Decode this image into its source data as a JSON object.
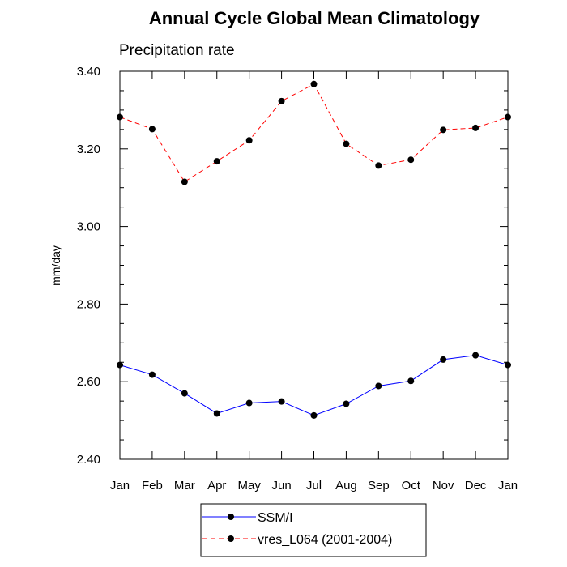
{
  "chart_data": {
    "type": "line",
    "title": "Annual Cycle Global Mean Climatology",
    "subtitle": "Precipitation rate",
    "xlabel": "",
    "ylabel": "mm/day",
    "categories": [
      "Jan",
      "Feb",
      "Mar",
      "Apr",
      "May",
      "Jun",
      "Jul",
      "Aug",
      "Sep",
      "Oct",
      "Nov",
      "Dec",
      "Jan"
    ],
    "ylim": [
      2.4,
      3.4
    ],
    "yticks": [
      "2.40",
      "2.60",
      "2.80",
      "3.00",
      "3.20",
      "3.40"
    ],
    "grid": false,
    "legend_position": "bottom-center",
    "series": [
      {
        "name": "SSM/I",
        "color": "#0000ff",
        "line_style": "solid",
        "marker": "filled-circle",
        "values": [
          2.643,
          2.618,
          2.57,
          2.518,
          2.545,
          2.549,
          2.513,
          2.543,
          2.589,
          2.602,
          2.657,
          2.668,
          2.643
        ]
      },
      {
        "name": "vres_L064 (2001-2004)",
        "color": "#ff0000",
        "line_style": "dashed",
        "marker": "filled-circle",
        "values": [
          3.282,
          3.251,
          3.115,
          3.168,
          3.222,
          3.323,
          3.367,
          3.213,
          3.157,
          3.172,
          3.249,
          3.254,
          3.282
        ]
      }
    ]
  }
}
